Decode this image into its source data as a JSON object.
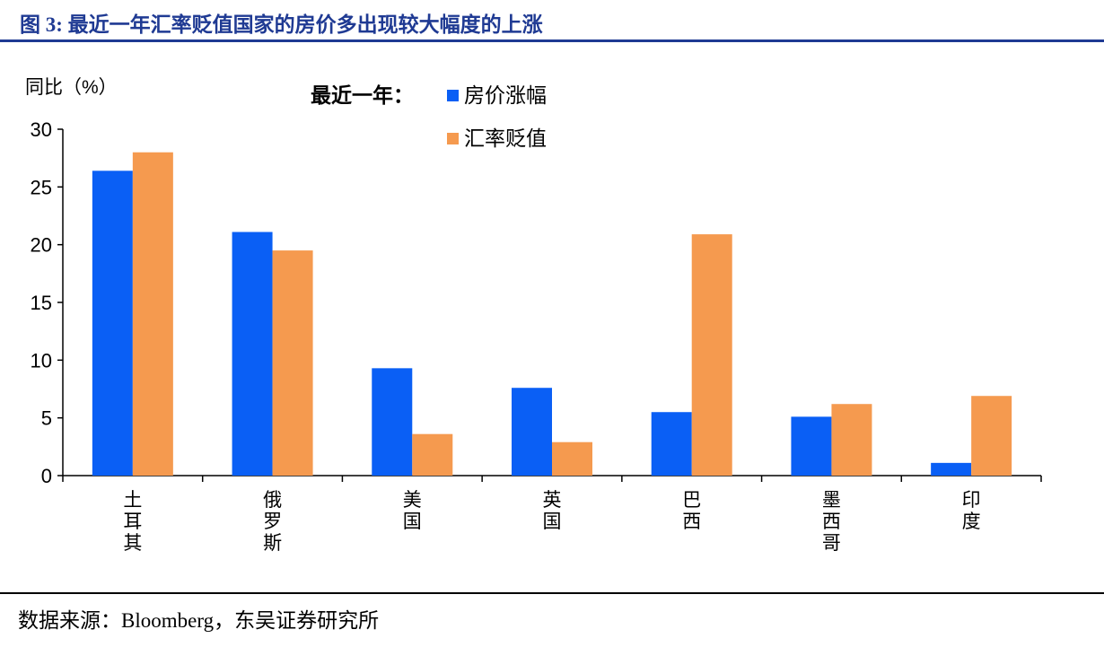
{
  "header": {
    "title": "图 3:  最近一年汇率贬值国家的房价多出现较大幅度的上涨"
  },
  "footer": {
    "source": "数据来源：Bloomberg，东吴证券研究所"
  },
  "chart_data": {
    "type": "bar",
    "title": "",
    "ylabel": "同比（%）",
    "xlabel": "",
    "legend_title": "最近一年：",
    "legend_position": "top-center",
    "grid": false,
    "ylim": [
      0,
      30
    ],
    "yticks": [
      0,
      5,
      10,
      15,
      20,
      25,
      30
    ],
    "categories": [
      "土耳其",
      "俄罗斯",
      "美国",
      "英国",
      "巴西",
      "墨西哥",
      "印度"
    ],
    "series": [
      {
        "name": "房价涨幅",
        "color": "#0a5ff5",
        "values": [
          26.4,
          21.1,
          9.3,
          7.6,
          5.5,
          5.1,
          1.1
        ]
      },
      {
        "name": "汇率贬值",
        "color": "#f59a4f",
        "values": [
          28.0,
          19.5,
          3.6,
          2.9,
          20.9,
          6.2,
          6.9
        ]
      }
    ]
  }
}
